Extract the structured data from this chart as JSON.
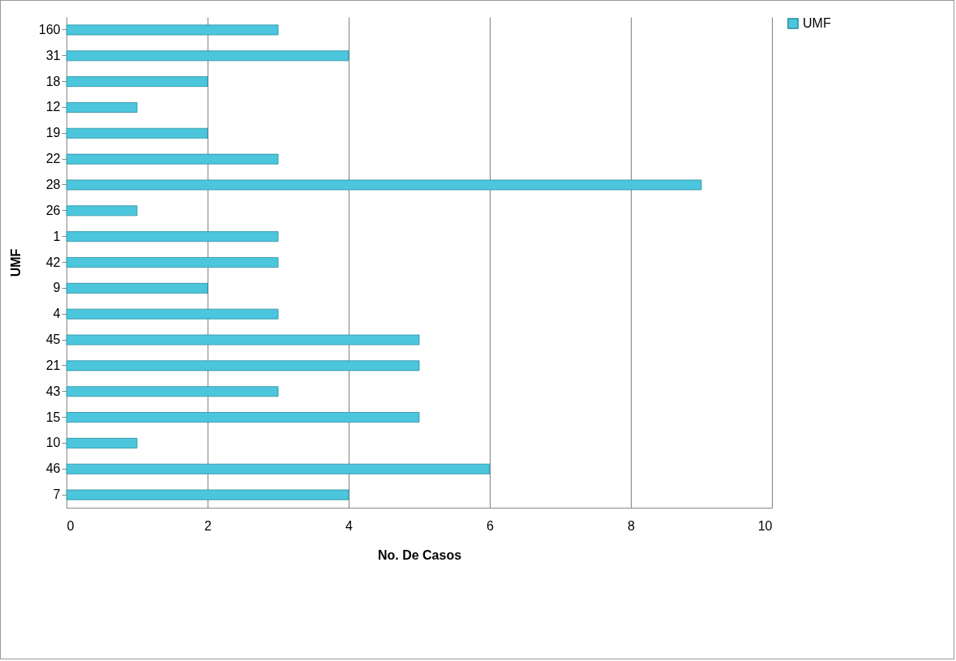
{
  "chart_data": {
    "type": "bar",
    "orientation": "horizontal",
    "xlabel": "No. De Casos",
    "ylabel": "UMF",
    "categories": [
      "160",
      "31",
      "18",
      "12",
      "19",
      "22",
      "28",
      "26",
      "1",
      "42",
      "9",
      "4",
      "45",
      "21",
      "43",
      "15",
      "10",
      "46",
      "7"
    ],
    "series": [
      {
        "name": "UMF",
        "color": "#4bc6dc",
        "values": [
          3,
          4,
          2,
          1,
          2,
          3,
          9,
          1,
          3,
          3,
          2,
          3,
          5,
          5,
          3,
          5,
          1,
          6,
          4
        ]
      }
    ],
    "xlim": [
      0,
      10
    ],
    "xticks": [
      0,
      2,
      4,
      6,
      8,
      10
    ],
    "grid": "x",
    "legend": "right"
  }
}
